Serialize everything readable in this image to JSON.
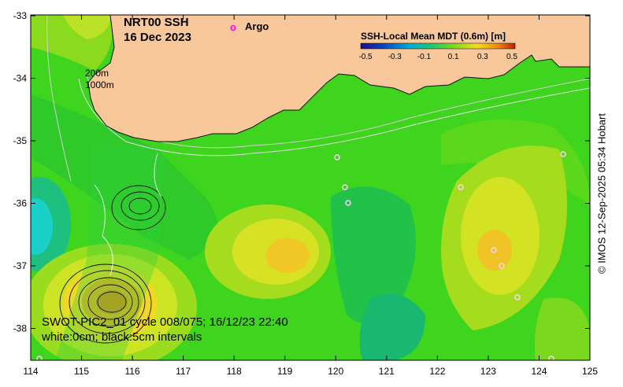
{
  "title": {
    "line1": "NRT00 SSH",
    "line2": "16 Dec 2023"
  },
  "legend": {
    "argo_marker": "o",
    "argo_label": "Argo",
    "colorbar_title": "SSH-Local Mean MDT (0.6m) [m]",
    "colorbar_ticks": [
      "-0.5",
      "-0.3",
      "-0.1",
      "0.1",
      "0.3",
      "0.5"
    ],
    "colorbar_colors": [
      "#1b0f8a",
      "#0a46c8",
      "#00b0d8",
      "#18c878",
      "#7ad820",
      "#f0e020",
      "#f09010",
      "#c02008"
    ]
  },
  "isobaths": {
    "shallow": "200m",
    "deep": "1000m"
  },
  "axes": {
    "lat_ticks": [
      "-33",
      "-34",
      "-35",
      "-36",
      "-37",
      "-38"
    ],
    "lon_ticks": [
      "114",
      "115",
      "116",
      "117",
      "118",
      "119",
      "120",
      "121",
      "122",
      "123",
      "124",
      "125"
    ]
  },
  "swot": {
    "pass": "SWOT-PIC2_01 cycle 008/075; 16/12/23 22:40",
    "contours": "white:0cm; black:5cm intervals"
  },
  "credit": "© IMOS 12-Sep-2025 05:34 Hobart",
  "colors": {
    "land": "#f8c89a",
    "ocean_base": "#3cd61e"
  }
}
